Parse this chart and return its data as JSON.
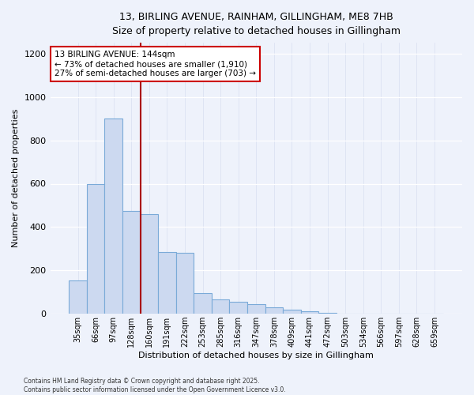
{
  "title_line1": "13, BIRLING AVENUE, RAINHAM, GILLINGHAM, ME8 7HB",
  "title_line2": "Size of property relative to detached houses in Gillingham",
  "xlabel": "Distribution of detached houses by size in Gillingham",
  "ylabel": "Number of detached properties",
  "bar_color": "#ccd9f0",
  "bar_edge_color": "#7aaad8",
  "background_color": "#eef2fb",
  "grid_color": "#ffffff",
  "categories": [
    "35sqm",
    "66sqm",
    "97sqm",
    "128sqm",
    "160sqm",
    "191sqm",
    "222sqm",
    "253sqm",
    "285sqm",
    "316sqm",
    "347sqm",
    "378sqm",
    "409sqm",
    "441sqm",
    "472sqm",
    "503sqm",
    "534sqm",
    "566sqm",
    "597sqm",
    "628sqm",
    "659sqm"
  ],
  "values": [
    155,
    600,
    900,
    475,
    460,
    285,
    280,
    95,
    65,
    55,
    45,
    30,
    20,
    10,
    5,
    0,
    0,
    0,
    0,
    0,
    0
  ],
  "ylim": [
    0,
    1250
  ],
  "yticks": [
    0,
    200,
    400,
    600,
    800,
    1000,
    1200
  ],
  "vline_x": 3.5,
  "vline_color": "#aa0000",
  "annotation_line1": "13 BIRLING AVENUE: 144sqm",
  "annotation_line2": "← 73% of detached houses are smaller (1,910)",
  "annotation_line3": "27% of semi-detached houses are larger (703) →",
  "annotation_box_color": "#ffffff",
  "annotation_box_edge": "#cc0000",
  "footer_line1": "Contains HM Land Registry data © Crown copyright and database right 2025.",
  "footer_line2": "Contains public sector information licensed under the Open Government Licence v3.0."
}
